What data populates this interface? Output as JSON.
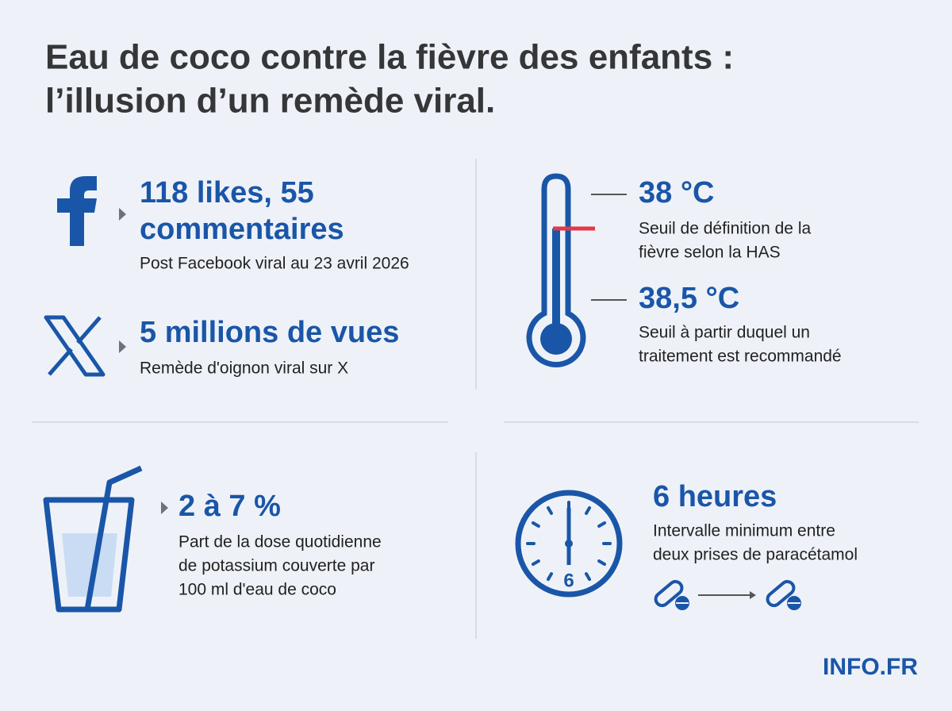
{
  "header": {
    "title_lines": [
      "Eau de coco contre la fièvre des enfants :",
      "l’illusion d’un remède viral."
    ]
  },
  "facebook": {
    "stat_lines": [
      "118 likes, 55",
      "commentaires"
    ],
    "caption": "Post Facebook viral au 23 avril 2026"
  },
  "x": {
    "stat": "5 millions de vues",
    "caption": "Remède d'oignon viral sur X"
  },
  "temperature": {
    "items": [
      {
        "stat": "38 °C",
        "caption_lines": [
          "Seuil de définition de la",
          "fièvre selon la HAS"
        ]
      },
      {
        "stat": "38,5 °C",
        "caption_lines": [
          "Seuil à partir duquel un",
          "traitement est recommandé"
        ]
      }
    ]
  },
  "potassium": {
    "stat": "2 à 7 %",
    "caption_lines": [
      "Part de la dose quotidienne",
      "de potassium couverte par",
      "100 ml d'eau de coco"
    ]
  },
  "interval": {
    "stat": "6 heures",
    "caption_lines": [
      "Intervalle minimum entre",
      "deux prises de paracétamol"
    ],
    "clock_numeral": "6"
  },
  "footer": {
    "brand": "INFO.FR"
  }
}
